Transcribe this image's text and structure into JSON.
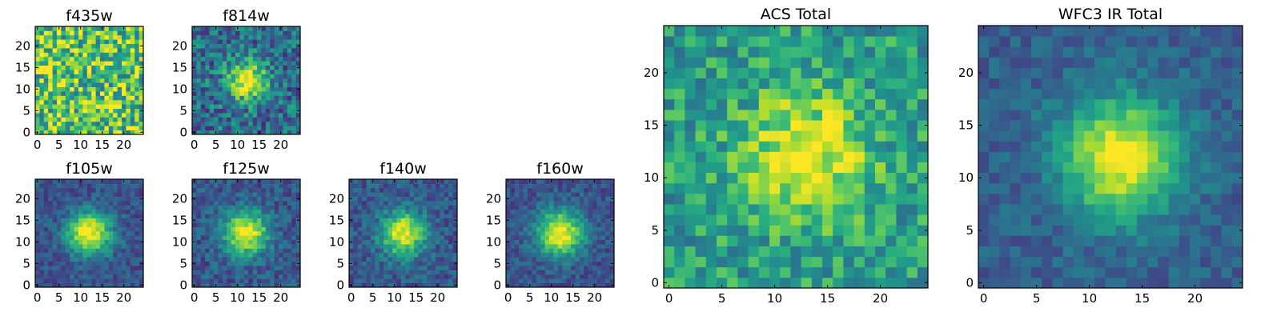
{
  "figure": {
    "background": "#ffffff"
  },
  "colormap": {
    "name": "viridis",
    "stops": [
      "#440154",
      "#472d7b",
      "#3b528b",
      "#2c728e",
      "#21918c",
      "#28ae80",
      "#5ec962",
      "#addc30",
      "#fde725"
    ]
  },
  "chart_data": [
    {
      "type": "heatmap",
      "title": "f435w",
      "grid_size": 25,
      "xlim": [
        0,
        24
      ],
      "ylim": [
        0,
        24
      ],
      "xticks": [
        0,
        5,
        10,
        15,
        20
      ],
      "yticks": [
        0,
        5,
        10,
        15,
        20
      ],
      "profile": {
        "peak": [
          12,
          12
        ],
        "center_value": 0.72,
        "background_level": 0.72,
        "width": 4,
        "noise": 0.34
      }
    },
    {
      "type": "heatmap",
      "title": "f814w",
      "grid_size": 25,
      "xlim": [
        0,
        24
      ],
      "ylim": [
        0,
        24
      ],
      "xticks": [
        0,
        5,
        10,
        15,
        20
      ],
      "yticks": [
        0,
        5,
        10,
        15,
        20
      ],
      "profile": {
        "peak": [
          12,
          12
        ],
        "center_value": 1.0,
        "background_level": 0.35,
        "width": 3.2,
        "noise": 0.24
      }
    },
    {
      "type": "heatmap",
      "title": "f105w",
      "grid_size": 25,
      "xlim": [
        0,
        24
      ],
      "ylim": [
        0,
        24
      ],
      "xticks": [
        0,
        5,
        10,
        15,
        20
      ],
      "yticks": [
        0,
        5,
        10,
        15,
        20
      ],
      "profile": {
        "peak": [
          12,
          12
        ],
        "center_value": 1.0,
        "background_level": 0.25,
        "width": 3.6,
        "noise": 0.12
      }
    },
    {
      "type": "heatmap",
      "title": "f125w",
      "grid_size": 25,
      "xlim": [
        0,
        24
      ],
      "ylim": [
        0,
        24
      ],
      "xticks": [
        0,
        5,
        10,
        15,
        20
      ],
      "yticks": [
        0,
        5,
        10,
        15,
        20
      ],
      "profile": {
        "peak": [
          12,
          12
        ],
        "center_value": 1.0,
        "background_level": 0.27,
        "width": 3.6,
        "noise": 0.14
      }
    },
    {
      "type": "heatmap",
      "title": "f140w",
      "grid_size": 25,
      "xlim": [
        0,
        24
      ],
      "ylim": [
        0,
        24
      ],
      "xticks": [
        0,
        5,
        10,
        15,
        20
      ],
      "yticks": [
        0,
        5,
        10,
        15,
        20
      ],
      "profile": {
        "peak": [
          12,
          12
        ],
        "center_value": 1.0,
        "background_level": 0.27,
        "width": 3.6,
        "noise": 0.14
      }
    },
    {
      "type": "heatmap",
      "title": "f160w",
      "grid_size": 25,
      "xlim": [
        0,
        24
      ],
      "ylim": [
        0,
        24
      ],
      "xticks": [
        0,
        5,
        10,
        15,
        20
      ],
      "yticks": [
        0,
        5,
        10,
        15,
        20
      ],
      "profile": {
        "peak": [
          12,
          12
        ],
        "center_value": 1.0,
        "background_level": 0.25,
        "width": 3.8,
        "noise": 0.12
      }
    },
    {
      "type": "heatmap",
      "title": "ACS Total",
      "grid_size": 25,
      "xlim": [
        0,
        24
      ],
      "ylim": [
        0,
        24
      ],
      "xticks": [
        0,
        5,
        10,
        15,
        20
      ],
      "yticks": [
        0,
        5,
        10,
        15,
        20
      ],
      "profile": {
        "peak": [
          13,
          12
        ],
        "center_value": 1.0,
        "background_level": 0.55,
        "width": 4.2,
        "noise": 0.2
      }
    },
    {
      "type": "heatmap",
      "title": "WFC3 IR Total",
      "grid_size": 25,
      "xlim": [
        0,
        24
      ],
      "ylim": [
        0,
        24
      ],
      "xticks": [
        0,
        5,
        10,
        15,
        20
      ],
      "yticks": [
        0,
        5,
        10,
        15,
        20
      ],
      "profile": {
        "peak": [
          13,
          12
        ],
        "center_value": 1.0,
        "background_level": 0.3,
        "width": 4.0,
        "noise": 0.1
      }
    }
  ]
}
